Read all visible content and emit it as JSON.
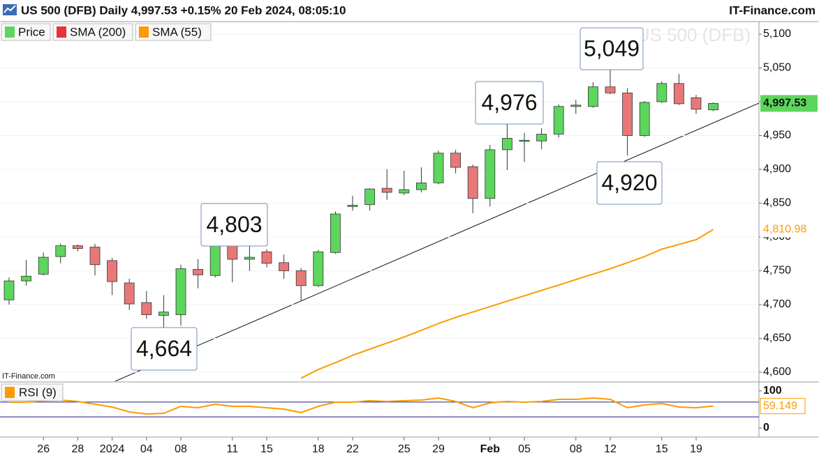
{
  "chart_data": {
    "type": "candlestick",
    "title": "US 500 (DFB) Daily 4,997.53 +0.15% 20 Feb 2024, 08:05:10",
    "brand": "IT-Finance.com",
    "source": "IT-Finance.com",
    "watermark": "US 500 (DFB)",
    "legend": [
      {
        "name": "Price",
        "color": "#5cd65c"
      },
      {
        "name": "SMA (200)",
        "color": "#e8323c"
      },
      {
        "name": "SMA (55)",
        "color": "#ff9900"
      }
    ],
    "categories": [
      null,
      null,
      "26",
      null,
      "28",
      null,
      "2024",
      null,
      "04",
      null,
      "08",
      null,
      null,
      "11",
      null,
      "15",
      null,
      null,
      "18",
      null,
      "22",
      null,
      null,
      "25",
      null,
      "29",
      null,
      null,
      "Feb",
      null,
      "05",
      null,
      null,
      "08",
      null,
      "12",
      null,
      null,
      "15",
      null,
      "19",
      null
    ],
    "open": [
      4707,
      4735,
      4745,
      4771,
      4787,
      4785,
      4765,
      4732,
      4703,
      4684,
      4685,
      4752,
      4743,
      4788,
      4767,
      4778,
      4762,
      4750,
      4728,
      4777,
      4845,
      4848,
      4872,
      4865,
      4870,
      4880,
      4924,
      4904,
      4857,
      4929,
      4942,
      4942,
      4952,
      4993,
      4993,
      5022,
      5013,
      4950,
      5000,
      5027,
      5006,
      4988
    ],
    "high": [
      4740,
      4766,
      4777,
      4790,
      4789,
      4790,
      4769,
      4738,
      4720,
      4714,
      4759,
      4767,
      4790,
      4803,
      4796,
      4782,
      4774,
      4754,
      4781,
      4838,
      4861,
      4872,
      4900,
      4898,
      4903,
      4928,
      4929,
      4907,
      4936,
      4976,
      4954,
      4961,
      4996,
      5003,
      5029,
      5049,
      5020,
      5001,
      5030,
      5041,
      5010,
      4999
    ],
    "low": [
      4700,
      4728,
      4743,
      4761,
      4779,
      4743,
      4714,
      4692,
      4679,
      4664,
      4669,
      4724,
      4740,
      4733,
      4750,
      4755,
      4738,
      4705,
      4726,
      4775,
      4839,
      4839,
      4855,
      4862,
      4866,
      4878,
      4894,
      4835,
      4845,
      4899,
      4911,
      4930,
      4947,
      4982,
      4991,
      5011,
      4920,
      4948,
      4998,
      4995,
      4982,
      4986
    ],
    "close": [
      4735,
      4742,
      4770,
      4787,
      4783,
      4759,
      4734,
      4701,
      4685,
      4689,
      4753,
      4744,
      4788,
      4767,
      4770,
      4761,
      4750,
      4728,
      4778,
      4834,
      4847,
      4871,
      4866,
      4870,
      4880,
      4924,
      4903,
      4857,
      4929,
      4946,
      4943,
      4952,
      4993,
      4995,
      5022,
      5013,
      4950,
      4999,
      5027,
      4997,
      4989,
      4997.53
    ],
    "close_labels": [
      null,
      null,
      null,
      null,
      null,
      null,
      null,
      null,
      null,
      null,
      null,
      null,
      null,
      null,
      null,
      null,
      null,
      null,
      null,
      null,
      null,
      null,
      null,
      null,
      null,
      null,
      null,
      null,
      null,
      null,
      null,
      null,
      null,
      null,
      null,
      null,
      null,
      null,
      null,
      null,
      null,
      "4,997.53"
    ],
    "up_color": "#5cd65c",
    "down_color": "#e87878",
    "sma": {
      "color": "#ff9900",
      "values": [
        null,
        null,
        null,
        null,
        null,
        null,
        null,
        null,
        null,
        null,
        null,
        null,
        null,
        null,
        null,
        null,
        null,
        4591,
        4604,
        4614,
        4625,
        4634,
        4643,
        4652,
        4662,
        4672,
        4681,
        4689,
        4697,
        4705,
        4713,
        4721,
        4729,
        4737,
        4745,
        4753,
        4762,
        4771,
        4782,
        4789,
        4796,
        4810.98
      ],
      "value_labels": [
        null,
        null,
        null,
        null,
        null,
        null,
        null,
        null,
        null,
        null,
        null,
        null,
        null,
        null,
        null,
        null,
        null,
        null,
        null,
        null,
        null,
        null,
        null,
        null,
        null,
        null,
        null,
        null,
        null,
        null,
        null,
        null,
        null,
        null,
        null,
        null,
        null,
        null,
        null,
        null,
        null,
        "4,810.98"
      ]
    },
    "ylim": [
      4586.6,
      5117.5
    ],
    "yticks": [
      {
        "value": 4600,
        "label": "4,600"
      },
      {
        "value": 4650,
        "label": "4,650"
      },
      {
        "value": 4700,
        "label": "4,700"
      },
      {
        "value": 4750,
        "label": "4,750"
      },
      {
        "value": 4800,
        "label": "4,800"
      },
      {
        "value": 4850,
        "label": "4,850"
      },
      {
        "value": 4900,
        "label": "4,900"
      },
      {
        "value": 4950,
        "label": "4,950"
      },
      {
        "value": 5000,
        "label": "5,000"
      },
      {
        "value": 5050,
        "label": "5,050"
      },
      {
        "value": 5100,
        "label": "5,100"
      }
    ],
    "grid": true,
    "annotations": [
      "5,049",
      "4,976",
      "4,803",
      "4,664",
      "4,920"
    ],
    "rsi": {
      "name": "RSI (9)",
      "color": "#ff9900",
      "values": [
        69.8,
        69.8,
        73.6,
        75.5,
        71.7,
        64.2,
        56.6,
        43.4,
        37.7,
        39.6,
        58.5,
        54.7,
        64.2,
        58.5,
        58.5,
        54.7,
        50.9,
        41.5,
        58.5,
        69.8,
        69.8,
        73.6,
        71.7,
        73.6,
        75.5,
        81.1,
        71.7,
        54.7,
        67.9,
        71.7,
        69.8,
        71.7,
        77.4,
        77.4,
        81.1,
        77.4,
        54.7,
        62.3,
        66.0,
        56.6,
        54.7,
        59.149
      ],
      "value_labels": [
        null,
        null,
        null,
        null,
        null,
        null,
        null,
        null,
        null,
        null,
        null,
        null,
        null,
        null,
        null,
        null,
        null,
        null,
        null,
        null,
        null,
        null,
        null,
        null,
        null,
        null,
        null,
        null,
        null,
        null,
        null,
        null,
        null,
        null,
        null,
        null,
        null,
        null,
        null,
        null,
        null,
        "59.149"
      ],
      "ylim": [
        -24.5,
        122.6
      ],
      "yticks": [
        100,
        0
      ],
      "levels": [
        70,
        30
      ]
    }
  }
}
